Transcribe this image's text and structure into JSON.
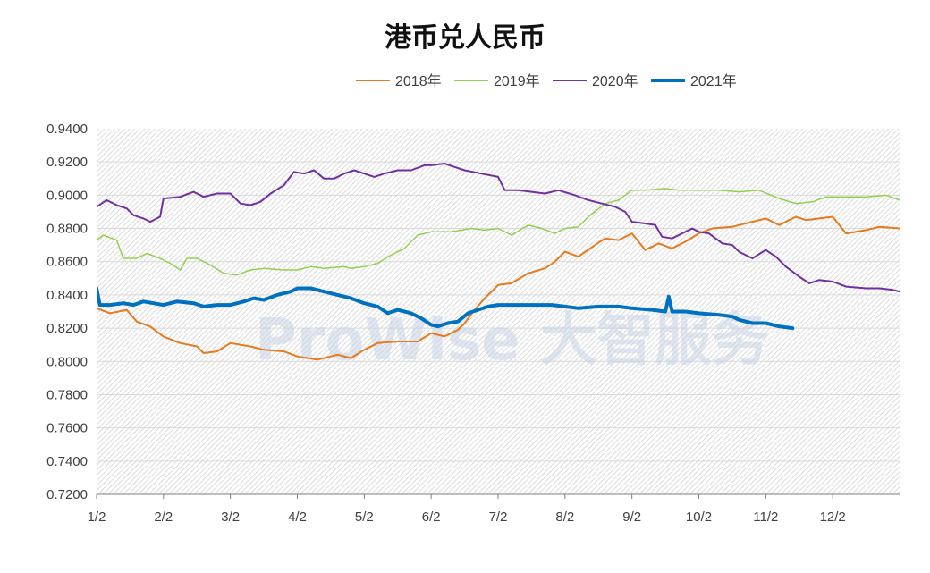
{
  "chart_data": {
    "type": "line",
    "title": "港币兑人民币",
    "xlabel": "",
    "ylabel": "",
    "ylim": [
      0.72,
      0.94
    ],
    "y_ticks": [
      "0.9400",
      "0.9200",
      "0.9000",
      "0.8800",
      "0.8600",
      "0.8400",
      "0.8200",
      "0.8000",
      "0.7800",
      "0.7600",
      "0.7400",
      "0.7200"
    ],
    "x_ticks": [
      "1/2",
      "2/2",
      "3/2",
      "4/2",
      "5/2",
      "6/2",
      "7/2",
      "8/2",
      "9/2",
      "10/2",
      "11/2",
      "12/2"
    ],
    "x_unit": "month of year (1 = Jan 1, 13 = Dec 31)",
    "grid": true,
    "legend_position": "top",
    "watermark": "ProWise 大智服务",
    "series": [
      {
        "name": "2018年",
        "color": "#E57A1E",
        "width": 2,
        "points": [
          [
            1.0,
            0.832
          ],
          [
            1.2,
            0.829
          ],
          [
            1.45,
            0.831
          ],
          [
            1.6,
            0.824
          ],
          [
            1.8,
            0.821
          ],
          [
            2.0,
            0.815
          ],
          [
            2.25,
            0.811
          ],
          [
            2.5,
            0.809
          ],
          [
            2.6,
            0.805
          ],
          [
            2.8,
            0.806
          ],
          [
            3.0,
            0.811
          ],
          [
            3.3,
            0.809
          ],
          [
            3.5,
            0.807
          ],
          [
            3.8,
            0.806
          ],
          [
            4.0,
            0.803
          ],
          [
            4.3,
            0.801
          ],
          [
            4.6,
            0.804
          ],
          [
            4.8,
            0.802
          ],
          [
            5.0,
            0.807
          ],
          [
            5.2,
            0.811
          ],
          [
            5.5,
            0.812
          ],
          [
            5.8,
            0.812
          ],
          [
            6.0,
            0.817
          ],
          [
            6.2,
            0.815
          ],
          [
            6.4,
            0.819
          ],
          [
            6.5,
            0.823
          ],
          [
            6.65,
            0.831
          ],
          [
            6.8,
            0.838
          ],
          [
            7.0,
            0.846
          ],
          [
            7.2,
            0.847
          ],
          [
            7.45,
            0.853
          ],
          [
            7.7,
            0.856
          ],
          [
            7.85,
            0.86
          ],
          [
            8.0,
            0.866
          ],
          [
            8.2,
            0.863
          ],
          [
            8.45,
            0.87
          ],
          [
            8.6,
            0.874
          ],
          [
            8.8,
            0.873
          ],
          [
            9.0,
            0.877
          ],
          [
            9.2,
            0.867
          ],
          [
            9.4,
            0.871
          ],
          [
            9.6,
            0.868
          ],
          [
            9.8,
            0.872
          ],
          [
            10.0,
            0.877
          ],
          [
            10.2,
            0.88
          ],
          [
            10.5,
            0.881
          ],
          [
            10.8,
            0.884
          ],
          [
            11.0,
            0.886
          ],
          [
            11.2,
            0.882
          ],
          [
            11.45,
            0.887
          ],
          [
            11.6,
            0.885
          ],
          [
            11.8,
            0.886
          ],
          [
            12.0,
            0.887
          ],
          [
            12.2,
            0.877
          ],
          [
            12.5,
            0.879
          ],
          [
            12.7,
            0.881
          ],
          [
            13.0,
            0.88
          ]
        ]
      },
      {
        "name": "2019年",
        "color": "#92D050",
        "width": 1.5,
        "points": [
          [
            1.0,
            0.873
          ],
          [
            1.1,
            0.876
          ],
          [
            1.3,
            0.873
          ],
          [
            1.4,
            0.862
          ],
          [
            1.6,
            0.862
          ],
          [
            1.75,
            0.865
          ],
          [
            1.95,
            0.862
          ],
          [
            2.1,
            0.859
          ],
          [
            2.25,
            0.855
          ],
          [
            2.35,
            0.862
          ],
          [
            2.5,
            0.862
          ],
          [
            2.7,
            0.858
          ],
          [
            2.9,
            0.853
          ],
          [
            3.1,
            0.852
          ],
          [
            3.3,
            0.855
          ],
          [
            3.5,
            0.856
          ],
          [
            3.8,
            0.855
          ],
          [
            4.0,
            0.855
          ],
          [
            4.2,
            0.857
          ],
          [
            4.4,
            0.856
          ],
          [
            4.7,
            0.857
          ],
          [
            4.8,
            0.856
          ],
          [
            5.0,
            0.857
          ],
          [
            5.2,
            0.859
          ],
          [
            5.4,
            0.864
          ],
          [
            5.6,
            0.868
          ],
          [
            5.8,
            0.876
          ],
          [
            6.0,
            0.878
          ],
          [
            6.3,
            0.878
          ],
          [
            6.6,
            0.88
          ],
          [
            6.8,
            0.879
          ],
          [
            7.0,
            0.88
          ],
          [
            7.2,
            0.876
          ],
          [
            7.45,
            0.882
          ],
          [
            7.65,
            0.88
          ],
          [
            7.85,
            0.877
          ],
          [
            8.0,
            0.88
          ],
          [
            8.2,
            0.881
          ],
          [
            8.35,
            0.887
          ],
          [
            8.6,
            0.895
          ],
          [
            8.8,
            0.897
          ],
          [
            9.0,
            0.903
          ],
          [
            9.2,
            0.903
          ],
          [
            9.5,
            0.904
          ],
          [
            9.7,
            0.903
          ],
          [
            10.0,
            0.903
          ],
          [
            10.3,
            0.903
          ],
          [
            10.6,
            0.902
          ],
          [
            10.9,
            0.903
          ],
          [
            11.2,
            0.898
          ],
          [
            11.45,
            0.895
          ],
          [
            11.7,
            0.896
          ],
          [
            11.9,
            0.899
          ],
          [
            12.2,
            0.899
          ],
          [
            12.5,
            0.899
          ],
          [
            12.8,
            0.9
          ],
          [
            13.0,
            0.897
          ]
        ]
      },
      {
        "name": "2020年",
        "color": "#7030A0",
        "width": 2,
        "points": [
          [
            1.0,
            0.893
          ],
          [
            1.15,
            0.897
          ],
          [
            1.3,
            0.894
          ],
          [
            1.45,
            0.892
          ],
          [
            1.55,
            0.888
          ],
          [
            1.7,
            0.886
          ],
          [
            1.8,
            0.884
          ],
          [
            1.95,
            0.887
          ],
          [
            2.0,
            0.898
          ],
          [
            2.25,
            0.899
          ],
          [
            2.45,
            0.902
          ],
          [
            2.6,
            0.899
          ],
          [
            2.8,
            0.901
          ],
          [
            3.0,
            0.901
          ],
          [
            3.15,
            0.895
          ],
          [
            3.3,
            0.894
          ],
          [
            3.45,
            0.896
          ],
          [
            3.6,
            0.901
          ],
          [
            3.8,
            0.906
          ],
          [
            3.95,
            0.914
          ],
          [
            4.1,
            0.913
          ],
          [
            4.25,
            0.915
          ],
          [
            4.4,
            0.91
          ],
          [
            4.55,
            0.91
          ],
          [
            4.7,
            0.913
          ],
          [
            4.85,
            0.915
          ],
          [
            5.0,
            0.913
          ],
          [
            5.15,
            0.911
          ],
          [
            5.3,
            0.913
          ],
          [
            5.5,
            0.915
          ],
          [
            5.7,
            0.915
          ],
          [
            5.9,
            0.918
          ],
          [
            6.0,
            0.918
          ],
          [
            6.2,
            0.919
          ],
          [
            6.35,
            0.917
          ],
          [
            6.5,
            0.915
          ],
          [
            6.75,
            0.913
          ],
          [
            7.0,
            0.911
          ],
          [
            7.1,
            0.903
          ],
          [
            7.3,
            0.903
          ],
          [
            7.5,
            0.902
          ],
          [
            7.7,
            0.901
          ],
          [
            7.9,
            0.903
          ],
          [
            8.15,
            0.9
          ],
          [
            8.35,
            0.897
          ],
          [
            8.55,
            0.895
          ],
          [
            8.75,
            0.893
          ],
          [
            8.9,
            0.89
          ],
          [
            9.0,
            0.884
          ],
          [
            9.2,
            0.883
          ],
          [
            9.35,
            0.882
          ],
          [
            9.45,
            0.875
          ],
          [
            9.6,
            0.874
          ],
          [
            9.75,
            0.877
          ],
          [
            9.9,
            0.88
          ],
          [
            10.0,
            0.878
          ],
          [
            10.15,
            0.877
          ],
          [
            10.35,
            0.871
          ],
          [
            10.5,
            0.87
          ],
          [
            10.6,
            0.866
          ],
          [
            10.8,
            0.862
          ],
          [
            11.0,
            0.867
          ],
          [
            11.15,
            0.863
          ],
          [
            11.3,
            0.857
          ],
          [
            11.5,
            0.851
          ],
          [
            11.65,
            0.847
          ],
          [
            11.8,
            0.849
          ],
          [
            12.0,
            0.848
          ],
          [
            12.2,
            0.845
          ],
          [
            12.5,
            0.844
          ],
          [
            12.7,
            0.844
          ],
          [
            12.9,
            0.843
          ],
          [
            13.0,
            0.842
          ]
        ]
      },
      {
        "name": "2021年",
        "color": "#0070C0",
        "width": 4,
        "points": [
          [
            1.0,
            0.844
          ],
          [
            1.05,
            0.834
          ],
          [
            1.2,
            0.834
          ],
          [
            1.4,
            0.835
          ],
          [
            1.55,
            0.834
          ],
          [
            1.7,
            0.836
          ],
          [
            1.85,
            0.835
          ],
          [
            2.0,
            0.834
          ],
          [
            2.2,
            0.836
          ],
          [
            2.45,
            0.835
          ],
          [
            2.6,
            0.833
          ],
          [
            2.8,
            0.834
          ],
          [
            3.0,
            0.834
          ],
          [
            3.2,
            0.836
          ],
          [
            3.35,
            0.838
          ],
          [
            3.5,
            0.837
          ],
          [
            3.7,
            0.84
          ],
          [
            3.9,
            0.842
          ],
          [
            4.0,
            0.844
          ],
          [
            4.2,
            0.844
          ],
          [
            4.4,
            0.842
          ],
          [
            4.6,
            0.84
          ],
          [
            4.8,
            0.838
          ],
          [
            5.0,
            0.835
          ],
          [
            5.2,
            0.833
          ],
          [
            5.35,
            0.829
          ],
          [
            5.5,
            0.831
          ],
          [
            5.7,
            0.829
          ],
          [
            5.85,
            0.826
          ],
          [
            6.0,
            0.822
          ],
          [
            6.1,
            0.821
          ],
          [
            6.25,
            0.823
          ],
          [
            6.4,
            0.824
          ],
          [
            6.55,
            0.829
          ],
          [
            6.7,
            0.831
          ],
          [
            6.85,
            0.833
          ],
          [
            7.0,
            0.834
          ],
          [
            7.2,
            0.834
          ],
          [
            7.5,
            0.834
          ],
          [
            7.8,
            0.834
          ],
          [
            8.0,
            0.833
          ],
          [
            8.2,
            0.832
          ],
          [
            8.5,
            0.833
          ],
          [
            8.8,
            0.833
          ],
          [
            9.0,
            0.832
          ],
          [
            9.3,
            0.831
          ],
          [
            9.5,
            0.83
          ],
          [
            9.55,
            0.839
          ],
          [
            9.6,
            0.83
          ],
          [
            9.8,
            0.83
          ],
          [
            10.0,
            0.829
          ],
          [
            10.3,
            0.828
          ],
          [
            10.5,
            0.827
          ],
          [
            10.6,
            0.825
          ],
          [
            10.8,
            0.823
          ],
          [
            11.0,
            0.823
          ],
          [
            11.2,
            0.821
          ],
          [
            11.4,
            0.82
          ]
        ]
      }
    ]
  }
}
